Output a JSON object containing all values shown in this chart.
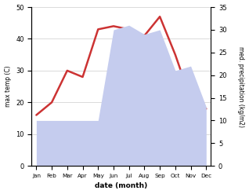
{
  "months": [
    "Jan",
    "Feb",
    "Mar",
    "Apr",
    "May",
    "Jun",
    "Jul",
    "Aug",
    "Sep",
    "Oct",
    "Nov",
    "Dec"
  ],
  "max_temp": [
    16,
    20,
    30,
    28,
    43,
    44,
    43,
    41,
    47,
    35,
    21,
    18
  ],
  "precipitation": [
    10,
    10,
    10,
    10,
    10,
    30,
    31,
    29,
    30,
    21,
    22,
    13
  ],
  "temp_color": "#cc3333",
  "precip_fill_color": "#c5ccee",
  "ylim_left": [
    0,
    50
  ],
  "ylim_right": [
    0,
    35
  ],
  "ylabel_left": "max temp (C)",
  "ylabel_right": "med. precipitation (kg/m2)",
  "xlabel": "date (month)",
  "temp_lw": 1.8,
  "background_color": "#ffffff",
  "grid_color": "#cccccc"
}
